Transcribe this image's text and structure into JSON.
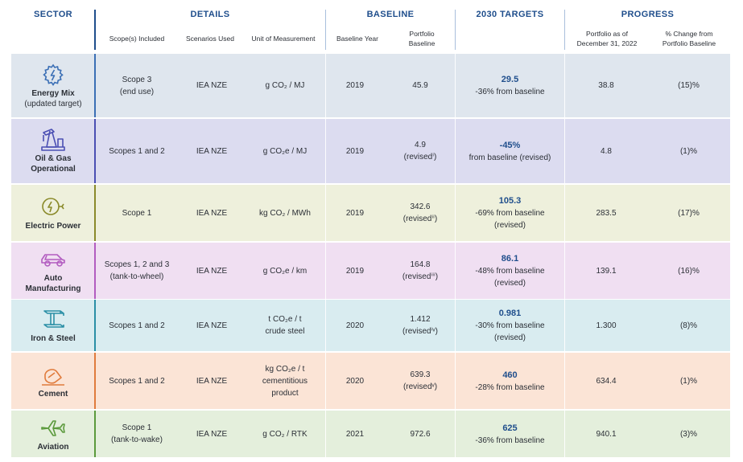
{
  "header": {
    "sector": "SECTOR",
    "details": "DETAILS",
    "baseline": "BASELINE",
    "targets": "2030 TARGETS",
    "progress": "PROGRESS",
    "scope": "Scope(s) Included",
    "scenarios": "Scenarios Used",
    "unit": "Unit of Measurement",
    "baseline_year": "Baseline Year",
    "portfolio_baseline_1": "Portfolio",
    "portfolio_baseline_2": "Baseline",
    "portfolio_asof_1": "Portfolio as of",
    "portfolio_asof_2": "December 31, 2022",
    "pct_change_1": "% Change from",
    "pct_change_2": "Portfolio Baseline"
  },
  "colors": {
    "header_blue": "#1f4e8c",
    "energy_bg": "#dfe6ee",
    "energy_accent": "#3b6fb5",
    "oil_bg": "#dcdcf0",
    "oil_accent": "#4b4fb3",
    "electric_bg": "#eef0dc",
    "electric_accent": "#8a8a2a",
    "auto_bg": "#f0dff2",
    "auto_accent": "#b25cc0",
    "iron_bg": "#d9ecf0",
    "iron_accent": "#2b8fa6",
    "cement_bg": "#fbe4d6",
    "cement_accent": "#e07b3c",
    "aviation_bg": "#e4efdc",
    "aviation_accent": "#5b9a3c"
  },
  "rows": [
    {
      "icon": "gear-bolt-icon",
      "sector": "Energy Mix",
      "sector_note": "(updated target)",
      "scope_1": "Scope 3",
      "scope_2": "(end use)",
      "scenario": "IEA NZE",
      "unit_1": "g CO₂ / MJ",
      "unit_2": "",
      "baseline_year": "2019",
      "portfolio_baseline": "45.9",
      "baseline_note": "",
      "target_value": "29.5",
      "target_text_1": "-36% from baseline",
      "target_text_2": "",
      "portfolio_asof": "38.8",
      "pct_change": "(15)%"
    },
    {
      "icon": "oil-pump-icon",
      "sector": "Oil & Gas",
      "sector_note": "Operational",
      "scope_1": "Scopes 1 and 2",
      "scope_2": "",
      "scenario": "IEA NZE",
      "unit_1": "g CO₂e / MJ",
      "unit_2": "",
      "baseline_year": "2019",
      "portfolio_baseline": "4.9",
      "baseline_note": "(revisedⁱ)",
      "target_value": "-45%",
      "target_text_1": "from baseline (revised)",
      "target_text_2": "",
      "portfolio_asof": "4.8",
      "pct_change": "(1)%"
    },
    {
      "icon": "electric-plug-icon",
      "sector": "Electric Power",
      "sector_note": "",
      "scope_1": "Scope 1",
      "scope_2": "",
      "scenario": "IEA NZE",
      "unit_1": "kg CO₂ / MWh",
      "unit_2": "",
      "baseline_year": "2019",
      "portfolio_baseline": "342.6",
      "baseline_note": "(revisedⁱⁱ)",
      "target_value": "105.3",
      "target_text_1": "-69% from baseline",
      "target_text_2": "(revised)",
      "portfolio_asof": "283.5",
      "pct_change": "(17)%"
    },
    {
      "icon": "car-icon",
      "sector": "Auto",
      "sector_note": "Manufacturing",
      "scope_1": "Scopes 1, 2 and 3",
      "scope_2": "(tank-to-wheel)",
      "scenario": "IEA NZE",
      "unit_1": "g CO₂e / km",
      "unit_2": "",
      "baseline_year": "2019",
      "portfolio_baseline": "164.8",
      "baseline_note": "(revisedⁱⁱⁱ)",
      "target_value": "86.1",
      "target_text_1": "-48% from baseline",
      "target_text_2": "(revised)",
      "portfolio_asof": "139.1",
      "pct_change": "(16)%"
    },
    {
      "icon": "steel-beam-icon",
      "sector": "Iron & Steel",
      "sector_note": "",
      "scope_1": "Scopes 1 and 2",
      "scope_2": "",
      "scenario": "IEA NZE",
      "unit_1": "t CO₂e / t",
      "unit_2": "crude steel",
      "baseline_year": "2020",
      "portfolio_baseline": "1.412",
      "baseline_note": "(revisedⁱᵛ)",
      "target_value": "0.981",
      "target_text_1": "-30% from baseline",
      "target_text_2": "(revised)",
      "portfolio_asof": "1.300",
      "pct_change": "(8)%"
    },
    {
      "icon": "cement-mixer-icon",
      "sector": "Cement",
      "sector_note": "",
      "scope_1": "Scopes 1 and 2",
      "scope_2": "",
      "scenario": "IEA NZE",
      "unit_1": "kg CO₂e / t",
      "unit_2": "cementitious",
      "unit_3": "product",
      "baseline_year": "2020",
      "portfolio_baseline": "639.3",
      "baseline_note": "(revisedᵛ)",
      "target_value": "460",
      "target_text_1": "-28% from baseline",
      "target_text_2": "",
      "portfolio_asof": "634.4",
      "pct_change": "(1)%"
    },
    {
      "icon": "airplane-icon",
      "sector": "Aviation",
      "sector_note": "",
      "scope_1": "Scope 1",
      "scope_2": "(tank-to-wake)",
      "scenario": "IEA NZE",
      "unit_1": "g CO₂ / RTK",
      "unit_2": "",
      "baseline_year": "2021",
      "portfolio_baseline": "972.6",
      "baseline_note": "",
      "target_value": "625",
      "target_text_1": "-36% from baseline",
      "target_text_2": "",
      "portfolio_asof": "940.1",
      "pct_change": "(3)%"
    }
  ]
}
